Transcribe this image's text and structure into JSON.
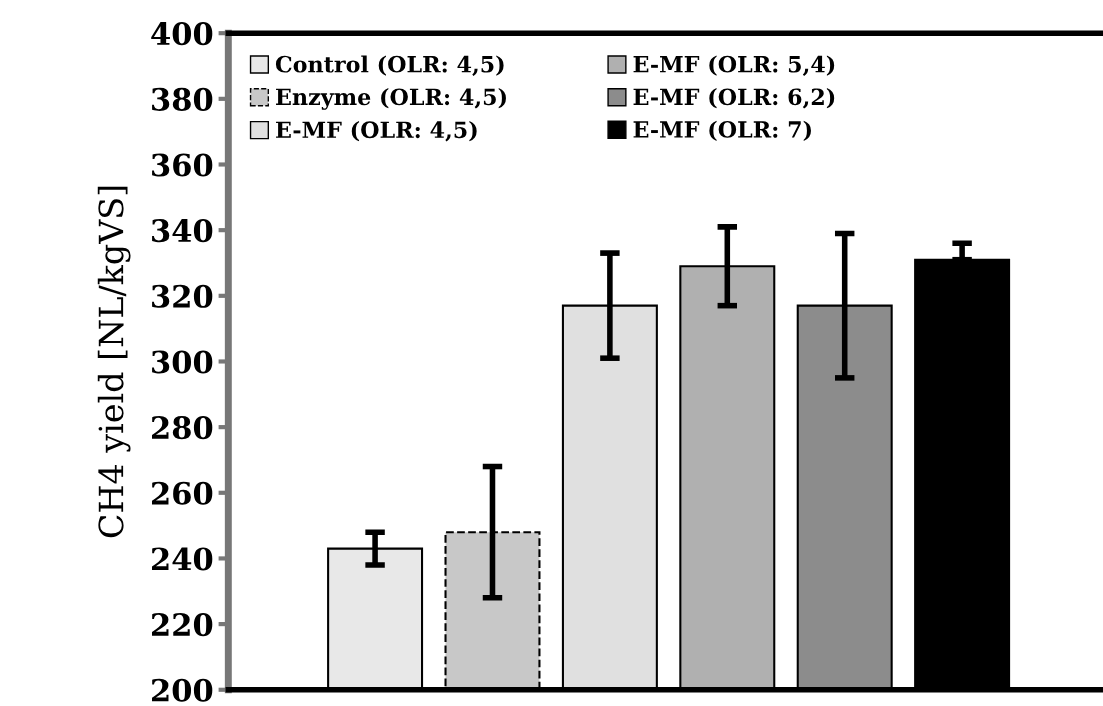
{
  "chart_data": {
    "type": "bar",
    "ylabel": "CH4 yield [NL/kgVS]",
    "categories": [
      null,
      null,
      null,
      null,
      null,
      null
    ],
    "series": [
      {
        "name": "Control (OLR: 4,5)",
        "color": "#e8e8e8",
        "values": [
          243,
          null,
          null,
          null,
          null,
          null
        ],
        "errors": [
          5,
          null,
          null,
          null,
          null,
          null
        ]
      },
      {
        "name": "Enzyme (OLR: 4,5)",
        "color": "#c8c8c8",
        "line_style": "dashed",
        "values": [
          null,
          248,
          null,
          null,
          null,
          null
        ],
        "errors": [
          null,
          20,
          null,
          null,
          null,
          null
        ]
      },
      {
        "name": "E-MF (OLR: 4,5)",
        "color": "#e0e0e0",
        "values": [
          null,
          null,
          317,
          null,
          null,
          null
        ],
        "errors": [
          null,
          null,
          16,
          null,
          null,
          null
        ]
      },
      {
        "name": "E-MF (OLR: 5,4)",
        "color": "#b0b0b0",
        "values": [
          null,
          null,
          null,
          329,
          null,
          null
        ],
        "errors": [
          null,
          null,
          null,
          12,
          null,
          null
        ]
      },
      {
        "name": "E-MF (OLR: 6,2)",
        "color": "#8c8c8c",
        "values": [
          null,
          null,
          null,
          null,
          317,
          null
        ],
        "errors": [
          null,
          null,
          null,
          null,
          22,
          null
        ]
      },
      {
        "name": "E-MF (OLR: 7)",
        "color": "#000000",
        "values": [
          null,
          null,
          null,
          null,
          null,
          331
        ],
        "errors": [
          null,
          null,
          null,
          null,
          null,
          [
            331,
            336
          ]
        ]
      }
    ],
    "ylim": [
      200,
      400
    ],
    "yticks": [
      200,
      220,
      240,
      260,
      280,
      300,
      320,
      340,
      360,
      380,
      400
    ],
    "legend": "top left",
    "grid": false
  }
}
